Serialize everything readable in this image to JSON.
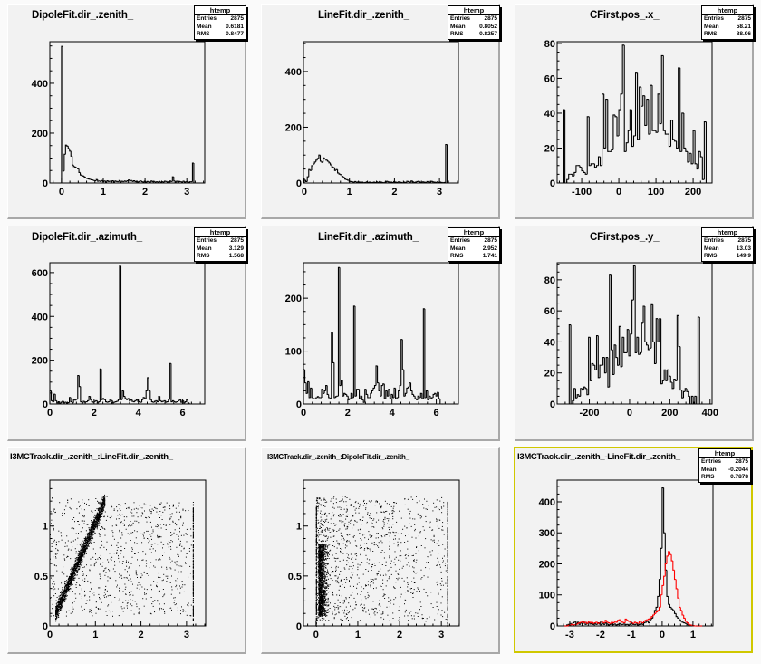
{
  "stats_labels": {
    "entries": "Entries",
    "mean": "Mean",
    "rms": "RMS"
  },
  "chart_data": [
    {
      "type": "bar",
      "histogram": true,
      "title": "DipoleFit.dir_.zenith_",
      "stats": {
        "name": "htemp",
        "entries": "2875",
        "mean": "0.6181",
        "rms": "0.8477"
      },
      "xlim": [
        -0.28,
        3.43
      ],
      "ylim": [
        0,
        567
      ],
      "xticks": [
        0,
        1,
        2,
        3
      ],
      "yticks": [
        0,
        200,
        400
      ],
      "grid": false,
      "series": [
        {
          "color": "#000000",
          "bin_start": 0,
          "bin_width": 0.032,
          "values": [
            548,
            48,
            115,
            152,
            148,
            138,
            128,
            108,
            72,
            66,
            64,
            60,
            57,
            42,
            32,
            30,
            28,
            24,
            20,
            18,
            16,
            15,
            13,
            12,
            10,
            9,
            14,
            7,
            8,
            6,
            10,
            5,
            8,
            4,
            9,
            6,
            7,
            5,
            9,
            4,
            8,
            6,
            5,
            10,
            4,
            7,
            5,
            8,
            6,
            9,
            12,
            8,
            10,
            6,
            9,
            5,
            7,
            4,
            6,
            8,
            5,
            4,
            7,
            3,
            6,
            5,
            4,
            8,
            5,
            6,
            3,
            5,
            4,
            6,
            3,
            5,
            4,
            7,
            6,
            4,
            5,
            8,
            6,
            25,
            8,
            4,
            7,
            3,
            6,
            5,
            4,
            7,
            3,
            5,
            6,
            2,
            5,
            5,
            80,
            0
          ]
        }
      ]
    },
    {
      "type": "bar",
      "histogram": true,
      "title": "LineFit.dir_.zenith_",
      "stats": {
        "name": "htemp",
        "entries": "2875",
        "mean": "0.8052",
        "rms": "0.8257"
      },
      "xlim": [
        -0.02,
        3.42
      ],
      "ylim": [
        0,
        507
      ],
      "xticks": [
        0,
        1,
        2,
        3
      ],
      "yticks": [
        0,
        200,
        400
      ],
      "grid": false,
      "series": [
        {
          "color": "#000000",
          "bin_start": 0,
          "bin_width": 0.032,
          "values": [
            10,
            5,
            22,
            48,
            45,
            62,
            68,
            75,
            82,
            88,
            100,
            78,
            74,
            90,
            86,
            82,
            78,
            72,
            65,
            58,
            55,
            45,
            48,
            36,
            32,
            30,
            24,
            20,
            14,
            12,
            10,
            6,
            5,
            4,
            3,
            5,
            2,
            4,
            3,
            2,
            3,
            1,
            2,
            4,
            2,
            3,
            1,
            2,
            3,
            2,
            4,
            2,
            5,
            3,
            2,
            1,
            3,
            6,
            4,
            2,
            3,
            2,
            5,
            3,
            2,
            4,
            3,
            2,
            1,
            3,
            2,
            6,
            5,
            3,
            7,
            4,
            2,
            3,
            5,
            6,
            3,
            2,
            4,
            3,
            2,
            5,
            2,
            3,
            6,
            4,
            3,
            2,
            4,
            2,
            3,
            2,
            1,
            2,
            138,
            0
          ]
        }
      ]
    },
    {
      "type": "bar",
      "histogram": true,
      "title": "CFirst.pos_.x_",
      "stats": {
        "name": "htemp",
        "entries": "2875",
        "mean": "58.21",
        "rms": "88.96"
      },
      "xlim": [
        -166,
        251
      ],
      "ylim": [
        0,
        81
      ],
      "xticks": [
        -100,
        0,
        100,
        200
      ],
      "yticks": [
        0,
        20,
        40,
        60,
        80
      ],
      "grid": false,
      "series": [
        {
          "color": "#000000",
          "bin_start": -150,
          "bin_width": 5,
          "values": [
            42,
            0,
            2,
            5,
            5,
            4,
            6,
            10,
            10,
            9,
            7,
            6,
            5,
            38,
            10,
            11,
            11,
            9,
            10,
            15,
            10,
            51,
            20,
            48,
            18,
            18,
            19,
            39,
            38,
            27,
            42,
            51,
            79,
            18,
            23,
            30,
            42,
            21,
            27,
            63,
            25,
            55,
            44,
            50,
            33,
            48,
            28,
            56,
            30,
            30,
            29,
            51,
            34,
            73,
            30,
            28,
            28,
            21,
            36,
            25,
            24,
            20,
            66,
            18,
            40,
            20,
            18,
            12,
            17,
            11,
            30,
            11,
            8,
            18,
            15,
            2,
            35,
            0
          ]
        }
      ]
    },
    {
      "type": "bar",
      "histogram": true,
      "title": "DipoleFit.dir_.azimuth_",
      "stats": {
        "name": "htemp",
        "entries": "2875",
        "mean": "3.129",
        "rms": "1.568"
      },
      "xlim": [
        0,
        7
      ],
      "ylim": [
        0,
        645
      ],
      "xticks": [
        0,
        2,
        4,
        6
      ],
      "yticks": [
        0,
        200,
        400,
        600
      ],
      "grid": false,
      "series": [
        {
          "color": "#000000",
          "bin_start": 0,
          "bin_width": 0.063,
          "values": [
            60,
            15,
            10,
            45,
            15,
            5,
            10,
            3,
            8,
            12,
            5,
            8,
            3,
            6,
            30,
            10,
            5,
            20,
            18,
            22,
            130,
            80,
            10,
            5,
            12,
            8,
            10,
            15,
            35,
            20,
            10,
            8,
            12,
            15,
            5,
            10,
            160,
            20,
            25,
            20,
            10,
            8,
            10,
            22,
            15,
            5,
            8,
            10,
            12,
            20,
            630,
            20,
            60,
            35,
            25,
            20,
            25,
            15,
            20,
            12,
            10,
            15,
            20,
            12,
            10,
            8,
            20,
            30,
            25,
            60,
            120,
            60,
            20,
            10,
            8,
            12,
            15,
            10,
            35,
            15,
            10,
            12,
            15,
            8,
            10,
            20,
            185,
            10,
            15,
            10,
            8,
            10,
            15,
            20,
            8,
            15,
            5,
            10,
            20,
            5
          ]
        }
      ]
    },
    {
      "type": "bar",
      "histogram": true,
      "title": "LineFit.dir_.azimuth_",
      "stats": {
        "name": "htemp",
        "entries": "2875",
        "mean": "2.952",
        "rms": "1.741"
      },
      "xlim": [
        0,
        7
      ],
      "ylim": [
        0,
        267
      ],
      "xticks": [
        0,
        2,
        4,
        6
      ],
      "yticks": [
        0,
        100,
        200
      ],
      "grid": false,
      "series": [
        {
          "color": "#000000",
          "bin_start": 0,
          "bin_width": 0.063,
          "values": [
            65,
            40,
            20,
            42,
            12,
            30,
            12,
            10,
            10,
            12,
            14,
            12,
            12,
            28,
            20,
            25,
            35,
            18,
            12,
            10,
            135,
            78,
            12,
            14,
            15,
            258,
            35,
            45,
            15,
            20,
            18,
            15,
            8,
            10,
            20,
            12,
            185,
            15,
            28,
            28,
            10,
            15,
            8,
            3,
            28,
            18,
            12,
            12,
            20,
            25,
            30,
            35,
            72,
            40,
            25,
            15,
            35,
            38,
            10,
            25,
            15,
            28,
            10,
            18,
            12,
            30,
            10,
            12,
            25,
            35,
            122,
            65,
            15,
            20,
            30,
            32,
            40,
            25,
            18,
            15,
            10,
            8,
            15,
            12,
            20,
            10,
            180,
            12,
            25,
            8,
            15,
            10,
            12,
            18,
            20,
            15,
            22,
            10,
            0,
            0
          ]
        }
      ]
    },
    {
      "type": "bar",
      "histogram": true,
      "title": "CFirst.pos_.y_",
      "stats": {
        "name": "htemp",
        "entries": "2875",
        "mean": "13.03",
        "rms": "149.9"
      },
      "xlim": [
        -360,
        410
      ],
      "ylim": [
        0,
        91
      ],
      "xticks": [
        -200,
        0,
        200,
        400
      ],
      "yticks": [
        0,
        20,
        40,
        60,
        80
      ],
      "grid": false,
      "series": [
        {
          "color": "#000000",
          "bin_start": -300,
          "bin_width": 8,
          "values": [
            51,
            0,
            2,
            10,
            4,
            6,
            5,
            10,
            9,
            11,
            10,
            6,
            43,
            15,
            26,
            25,
            22,
            44,
            17,
            25,
            25,
            30,
            20,
            30,
            11,
            83,
            35,
            19,
            38,
            30,
            25,
            50,
            24,
            43,
            33,
            33,
            48,
            31,
            45,
            67,
            89,
            33,
            43,
            32,
            33,
            52,
            63,
            40,
            38,
            35,
            36,
            64,
            40,
            26,
            55,
            40,
            55,
            13,
            15,
            22,
            15,
            22,
            18,
            14,
            10,
            16,
            15,
            57,
            37,
            9,
            4,
            8,
            10,
            8,
            5,
            0,
            5,
            0,
            5,
            0,
            56
          ]
        }
      ]
    },
    {
      "type": "scatter",
      "title": "I3MCTrack.dir_.zenith_:LineFit.dir_.zenith_",
      "xlim": [
        0,
        3.42
      ],
      "ylim": [
        0,
        1.46
      ],
      "xticks": [
        0,
        1,
        2,
        3
      ],
      "yticks": [
        0,
        0.5,
        1
      ],
      "grid": false,
      "entries": 2875,
      "color": "#000000"
    },
    {
      "type": "scatter",
      "title": "I3MCTrack.dir_.zenith_:DipoleFit.dir_.zenith_",
      "xlim": [
        -0.3,
        3.43
      ],
      "ylim": [
        0,
        1.46
      ],
      "xticks": [
        0,
        1,
        2,
        3
      ],
      "yticks": [
        0,
        0.5,
        1
      ],
      "grid": false,
      "entries": 2875,
      "color": "#000000"
    },
    {
      "type": "bar",
      "histogram": true,
      "title": "I3MCTrack.dir_.zenith_-LineFit.dir_.zenith_",
      "stats": {
        "name": "htemp",
        "entries": "2875",
        "mean": "-0.2044",
        "rms": "0.7878"
      },
      "xlim": [
        -3.41,
        1.65
      ],
      "ylim": [
        0,
        470
      ],
      "xticks": [
        -3,
        -2,
        -1,
        0,
        1
      ],
      "yticks": [
        0,
        100,
        200,
        300,
        400
      ],
      "grid": false,
      "series": [
        {
          "color": "#000000",
          "bin_start": -3.2,
          "bin_width": 0.05,
          "values": [
            0,
            0,
            3,
            5,
            8,
            5,
            10,
            15,
            8,
            12,
            5,
            10,
            8,
            12,
            5,
            8,
            10,
            6,
            8,
            5,
            8,
            5,
            10,
            6,
            4,
            8,
            5,
            10,
            6,
            3,
            5,
            8,
            4,
            6,
            3,
            5,
            8,
            4,
            5,
            6,
            4,
            5,
            3,
            6,
            8,
            5,
            4,
            6,
            3,
            5,
            8,
            5,
            10,
            12,
            15,
            10,
            20,
            25,
            35,
            50,
            60,
            95,
            150,
            250,
            445,
            300,
            180,
            95,
            70,
            60,
            55,
            50,
            40,
            30,
            25,
            20,
            15,
            12,
            10,
            8,
            5,
            3,
            2,
            2,
            1,
            0,
            0,
            0,
            0,
            0
          ]
        },
        {
          "color": "#ff0000",
          "bin_start": -3.2,
          "bin_width": 0.05,
          "values": [
            0,
            0,
            0,
            2,
            3,
            5,
            3,
            4,
            5,
            8,
            10,
            12,
            15,
            10,
            12,
            8,
            15,
            10,
            12,
            8,
            10,
            12,
            8,
            10,
            15,
            12,
            10,
            18,
            12,
            10,
            8,
            12,
            10,
            15,
            12,
            18,
            20,
            15,
            12,
            10,
            22,
            18,
            15,
            12,
            10,
            8,
            12,
            10,
            8,
            15,
            12,
            10,
            15,
            18,
            20,
            22,
            25,
            30,
            35,
            40,
            45,
            50,
            60,
            100,
            130,
            160,
            200,
            225,
            240,
            230,
            210,
            180,
            150,
            120,
            90,
            60,
            50,
            35,
            25,
            15,
            10,
            5,
            3,
            2,
            1,
            0,
            0,
            0,
            0,
            0
          ]
        }
      ]
    }
  ],
  "active_pad_color": "#d0c800"
}
